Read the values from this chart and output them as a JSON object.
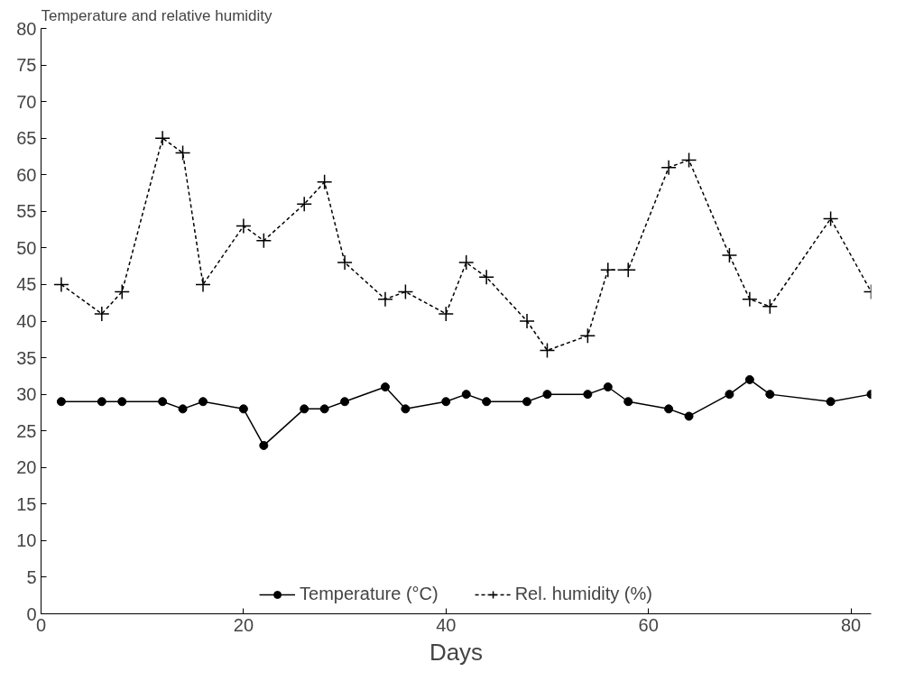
{
  "chart_data": {
    "type": "line",
    "title": "Temperature and relative humidity",
    "xlabel": "Days",
    "x": [
      2,
      6,
      8,
      12,
      14,
      16,
      20,
      22,
      26,
      28,
      30,
      34,
      36,
      40,
      42,
      44,
      48,
      50,
      54,
      56,
      58,
      62,
      64,
      68,
      70,
      72,
      78,
      82
    ],
    "series": [
      {
        "name": "Temperature (°C)",
        "color": "#000000",
        "marker": "circle",
        "line_style": "solid",
        "values": [
          29,
          29,
          29,
          29,
          28,
          29,
          28,
          23,
          28,
          28,
          29,
          31,
          28,
          29,
          30,
          29,
          29,
          30,
          30,
          31,
          29,
          28,
          27,
          30,
          32,
          30,
          29,
          30
        ]
      },
      {
        "name": "Rel. humidity (%)",
        "color": "#000000",
        "marker": "cross",
        "line_style": "dashed",
        "values": [
          45,
          41,
          44,
          65,
          63,
          45,
          53,
          51,
          56,
          59,
          48,
          43,
          44,
          41,
          48,
          46,
          40,
          36,
          38,
          47,
          47,
          61,
          62,
          49,
          43,
          42,
          54,
          44
        ]
      }
    ],
    "xlim": [
      0,
      82
    ],
    "ylim": [
      0,
      80
    ],
    "xticks": [
      0,
      20,
      40,
      60,
      80
    ],
    "yticks": [
      0,
      5,
      10,
      15,
      20,
      25,
      30,
      35,
      40,
      45,
      50,
      55,
      60,
      65,
      70,
      75,
      80
    ],
    "grid": false,
    "legend": "bottom"
  }
}
